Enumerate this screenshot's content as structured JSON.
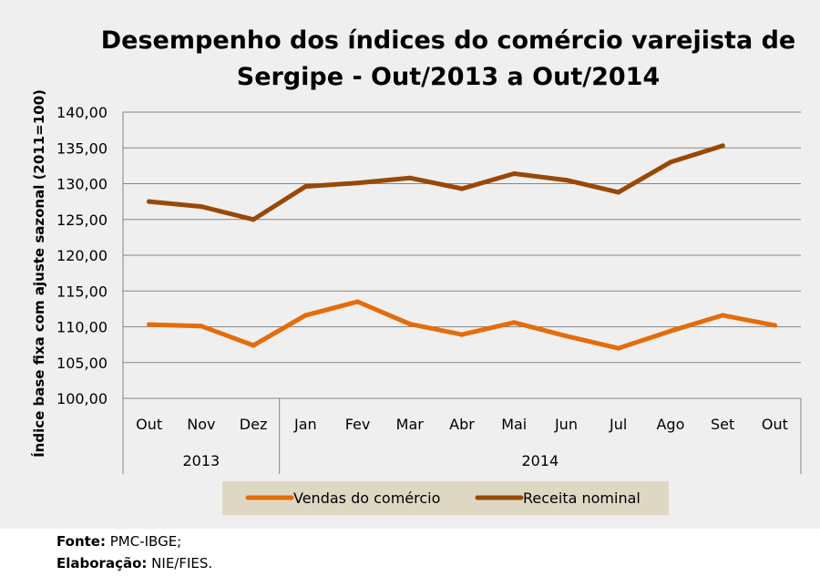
{
  "footer": {
    "source_label": "Fonte:",
    "source_value": "PMC-IBGE;",
    "credit_label": "Elaboração:",
    "credit_value": "NIE/FIES."
  },
  "colors": {
    "background": "#efefef",
    "legend_bg": "#ded7c3",
    "vendas": "#e46c0a",
    "receita": "#984807",
    "grid": "#868686"
  },
  "chart_data": {
    "type": "line",
    "title_lines": [
      "Desempenho dos índices do comércio varejista de",
      "Sergipe - Out/2013 a Out/2014"
    ],
    "ylabel": "Índice base fixa com ajuste sazonal (2011=100)",
    "ylim": [
      100,
      140
    ],
    "yticks": [
      "100,00",
      "105,00",
      "110,00",
      "115,00",
      "120,00",
      "125,00",
      "130,00",
      "135,00",
      "140,00"
    ],
    "categories": [
      "Out",
      "Nov",
      "Dez",
      "Jan",
      "Fev",
      "Mar",
      "Abr",
      "Mai",
      "Jun",
      "Jul",
      "Ago",
      "Set",
      "Out"
    ],
    "groups": [
      {
        "label": "2013",
        "count": 3
      },
      {
        "label": "2014",
        "count": 10
      }
    ],
    "grid": true,
    "legend_position": "bottom",
    "series": [
      {
        "name": "Vendas do comércio",
        "color": "#e46c0a",
        "values": [
          110.3,
          110.1,
          107.4,
          111.6,
          113.5,
          110.4,
          108.9,
          110.6,
          108.7,
          107.0,
          109.4,
          111.6,
          110.2
        ]
      },
      {
        "name": "Receita nominal",
        "color": "#984807",
        "values": [
          127.5,
          126.8,
          125.0,
          129.6,
          130.1,
          130.8,
          129.3,
          131.4,
          130.5,
          128.8,
          133.0,
          135.3,
          null
        ]
      }
    ]
  }
}
